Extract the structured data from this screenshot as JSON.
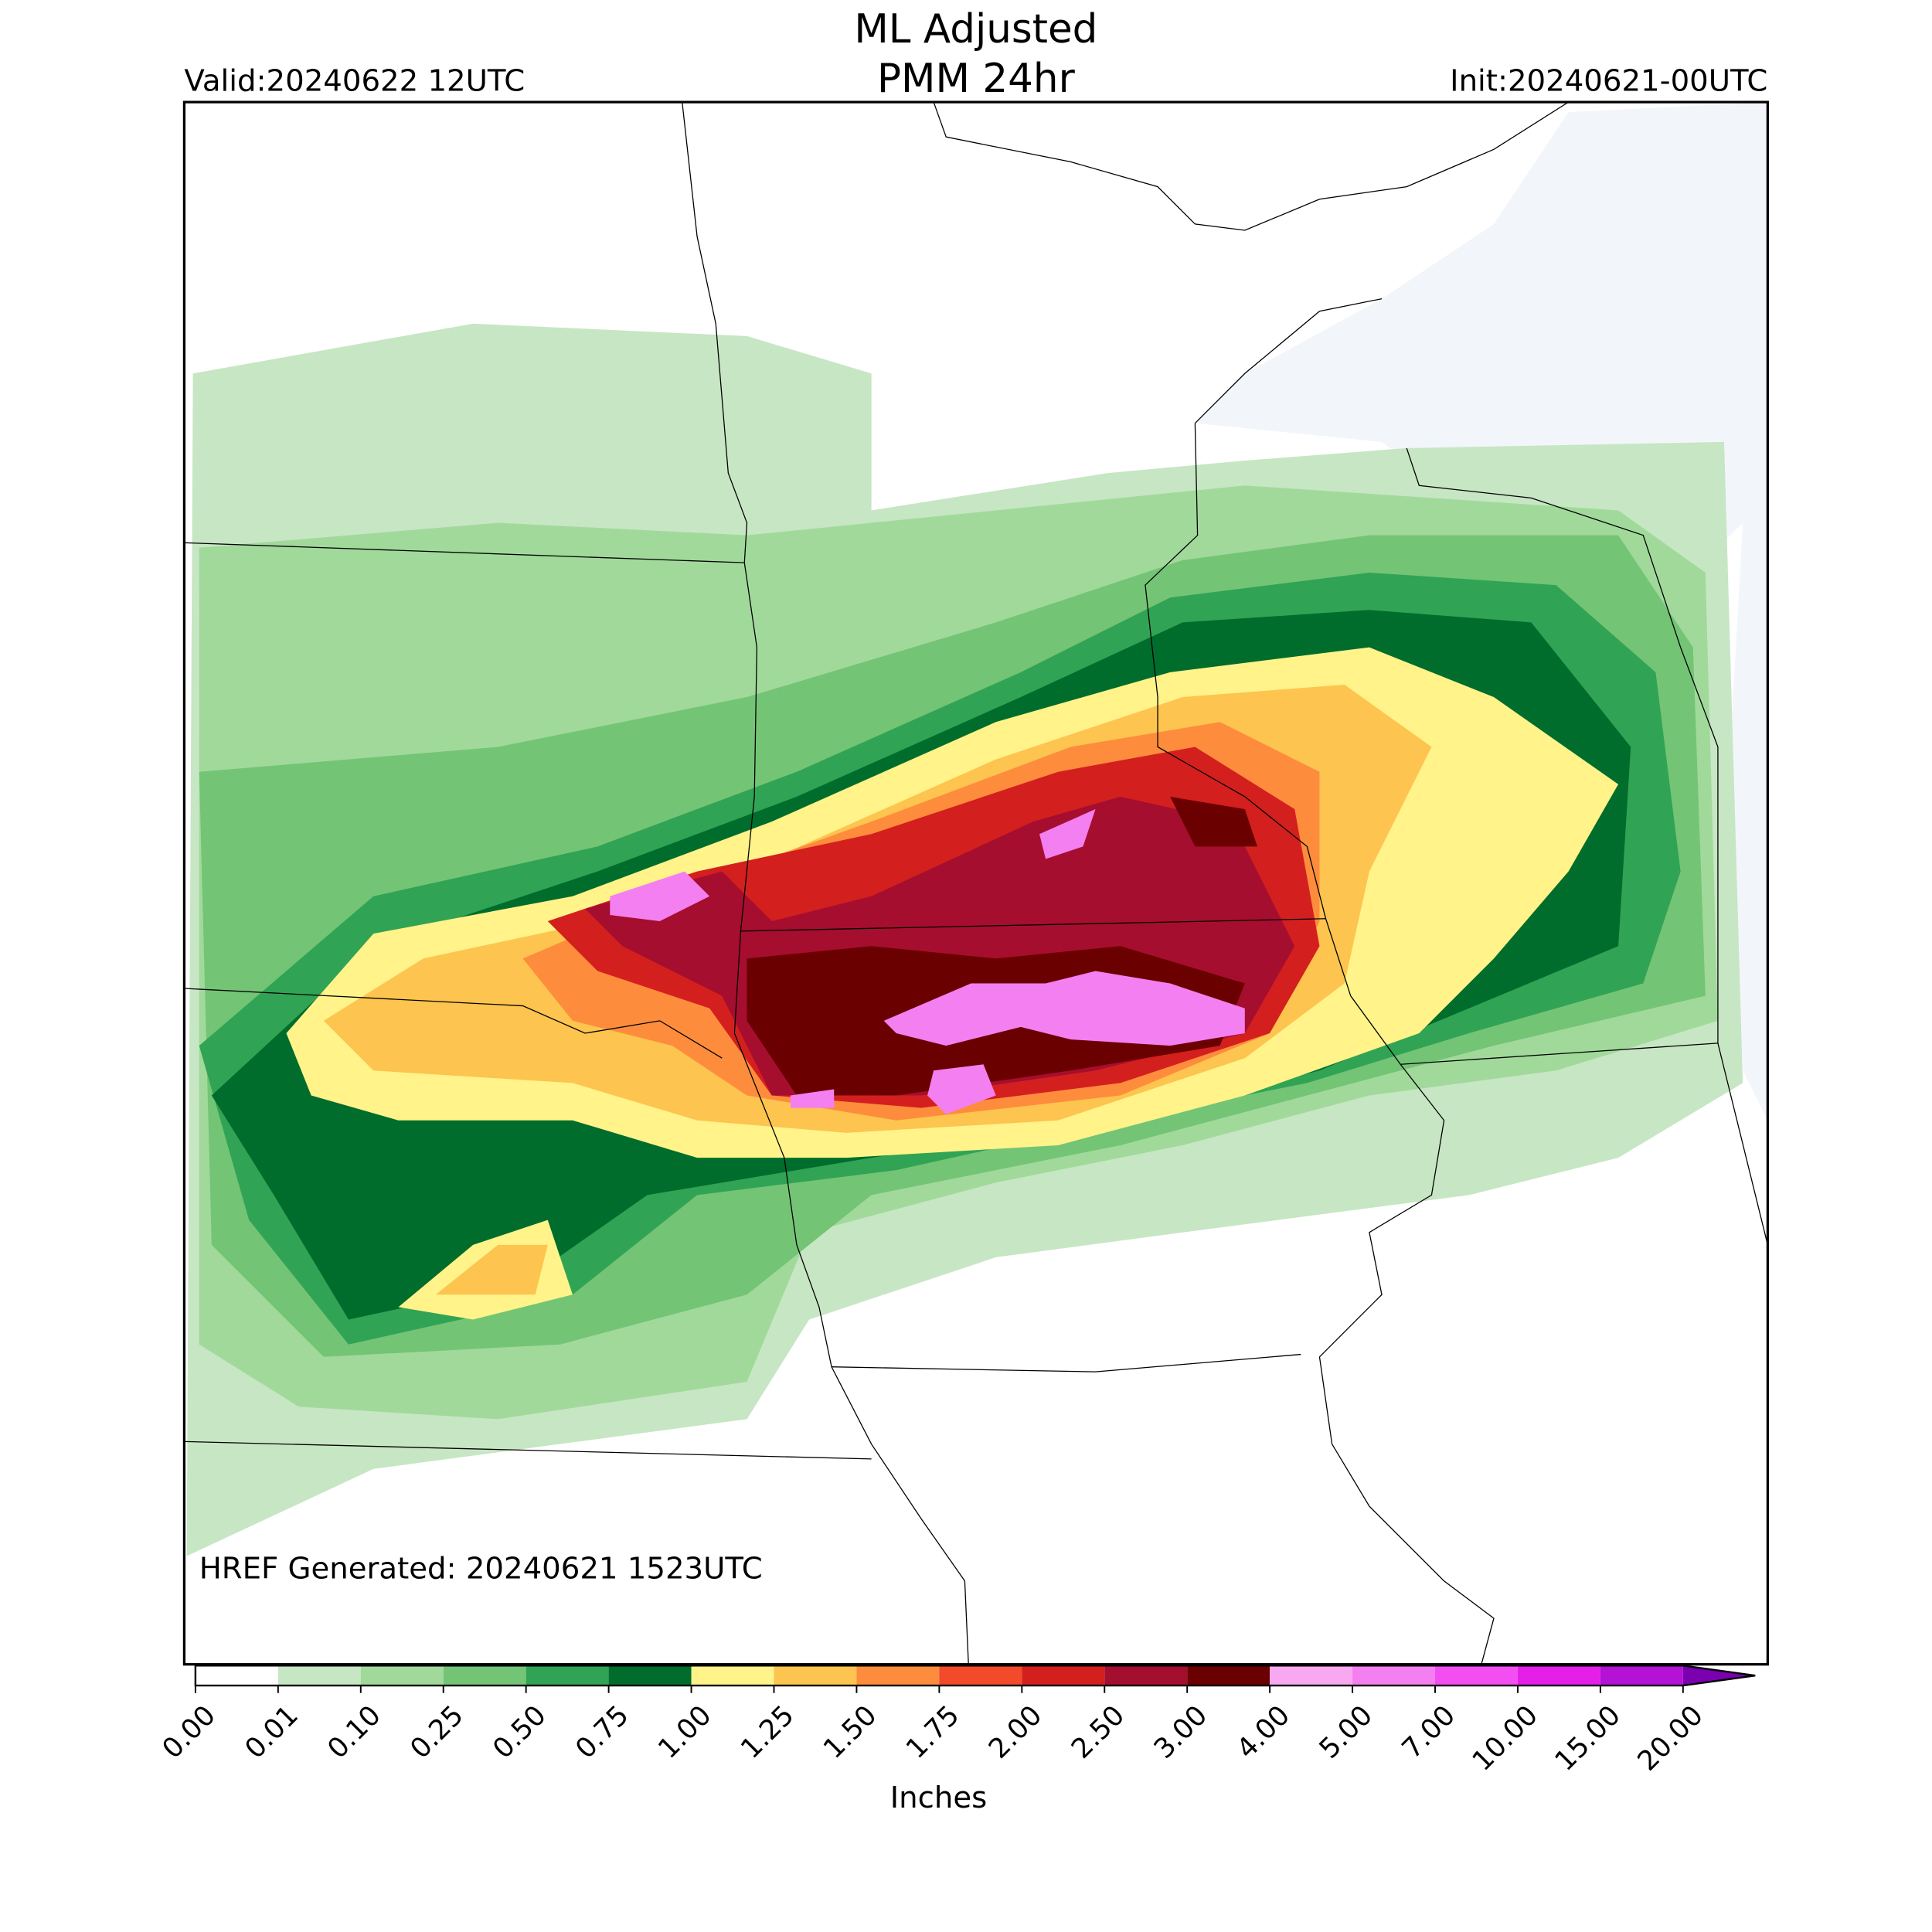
{
  "header": {
    "title_lines": [
      "ML Adjusted",
      "PMM 24hr"
    ],
    "valid": "Valid:20240622 12UTC",
    "init": "Init:20240621-00UTC"
  },
  "footer": {
    "generated": "HREF Generated: 20240621 1523UTC"
  },
  "colorbar": {
    "label": "Inches",
    "extend": "max",
    "ticks": [
      {
        "value": 0,
        "label": "0.00"
      },
      {
        "value": 0.01,
        "label": "0.01"
      },
      {
        "value": 0.1,
        "label": "0.10"
      },
      {
        "value": 0.25,
        "label": "0.25"
      },
      {
        "value": 0.5,
        "label": "0.50"
      },
      {
        "value": 0.75,
        "label": "0.75"
      },
      {
        "value": 1,
        "label": "1.00"
      },
      {
        "value": 1.25,
        "label": "1.25"
      },
      {
        "value": 1.5,
        "label": "1.50"
      },
      {
        "value": 1.75,
        "label": "1.75"
      },
      {
        "value": 2,
        "label": "2.00"
      },
      {
        "value": 2.5,
        "label": "2.50"
      },
      {
        "value": 3,
        "label": "3.00"
      },
      {
        "value": 4,
        "label": "4.00"
      },
      {
        "value": 5,
        "label": "5.00"
      },
      {
        "value": 7,
        "label": "7.00"
      },
      {
        "value": 10,
        "label": "10.00"
      },
      {
        "value": 15,
        "label": "15.00"
      },
      {
        "value": 20,
        "label": "20.00"
      }
    ],
    "colors": [
      "#ffffff",
      "#c7e6c4",
      "#a1d99b",
      "#74c476",
      "#31a354",
      "#006d2c",
      "#fff38a",
      "#fdc44f",
      "#fd8d3c",
      "#f24a2a",
      "#d41f1f",
      "#a50e2e",
      "#6b0000",
      "#f7a8f0",
      "#f47ff0",
      "#f24ef2",
      "#e51ee8",
      "#b412d4"
    ],
    "over_color": "#7a00b0"
  }
}
